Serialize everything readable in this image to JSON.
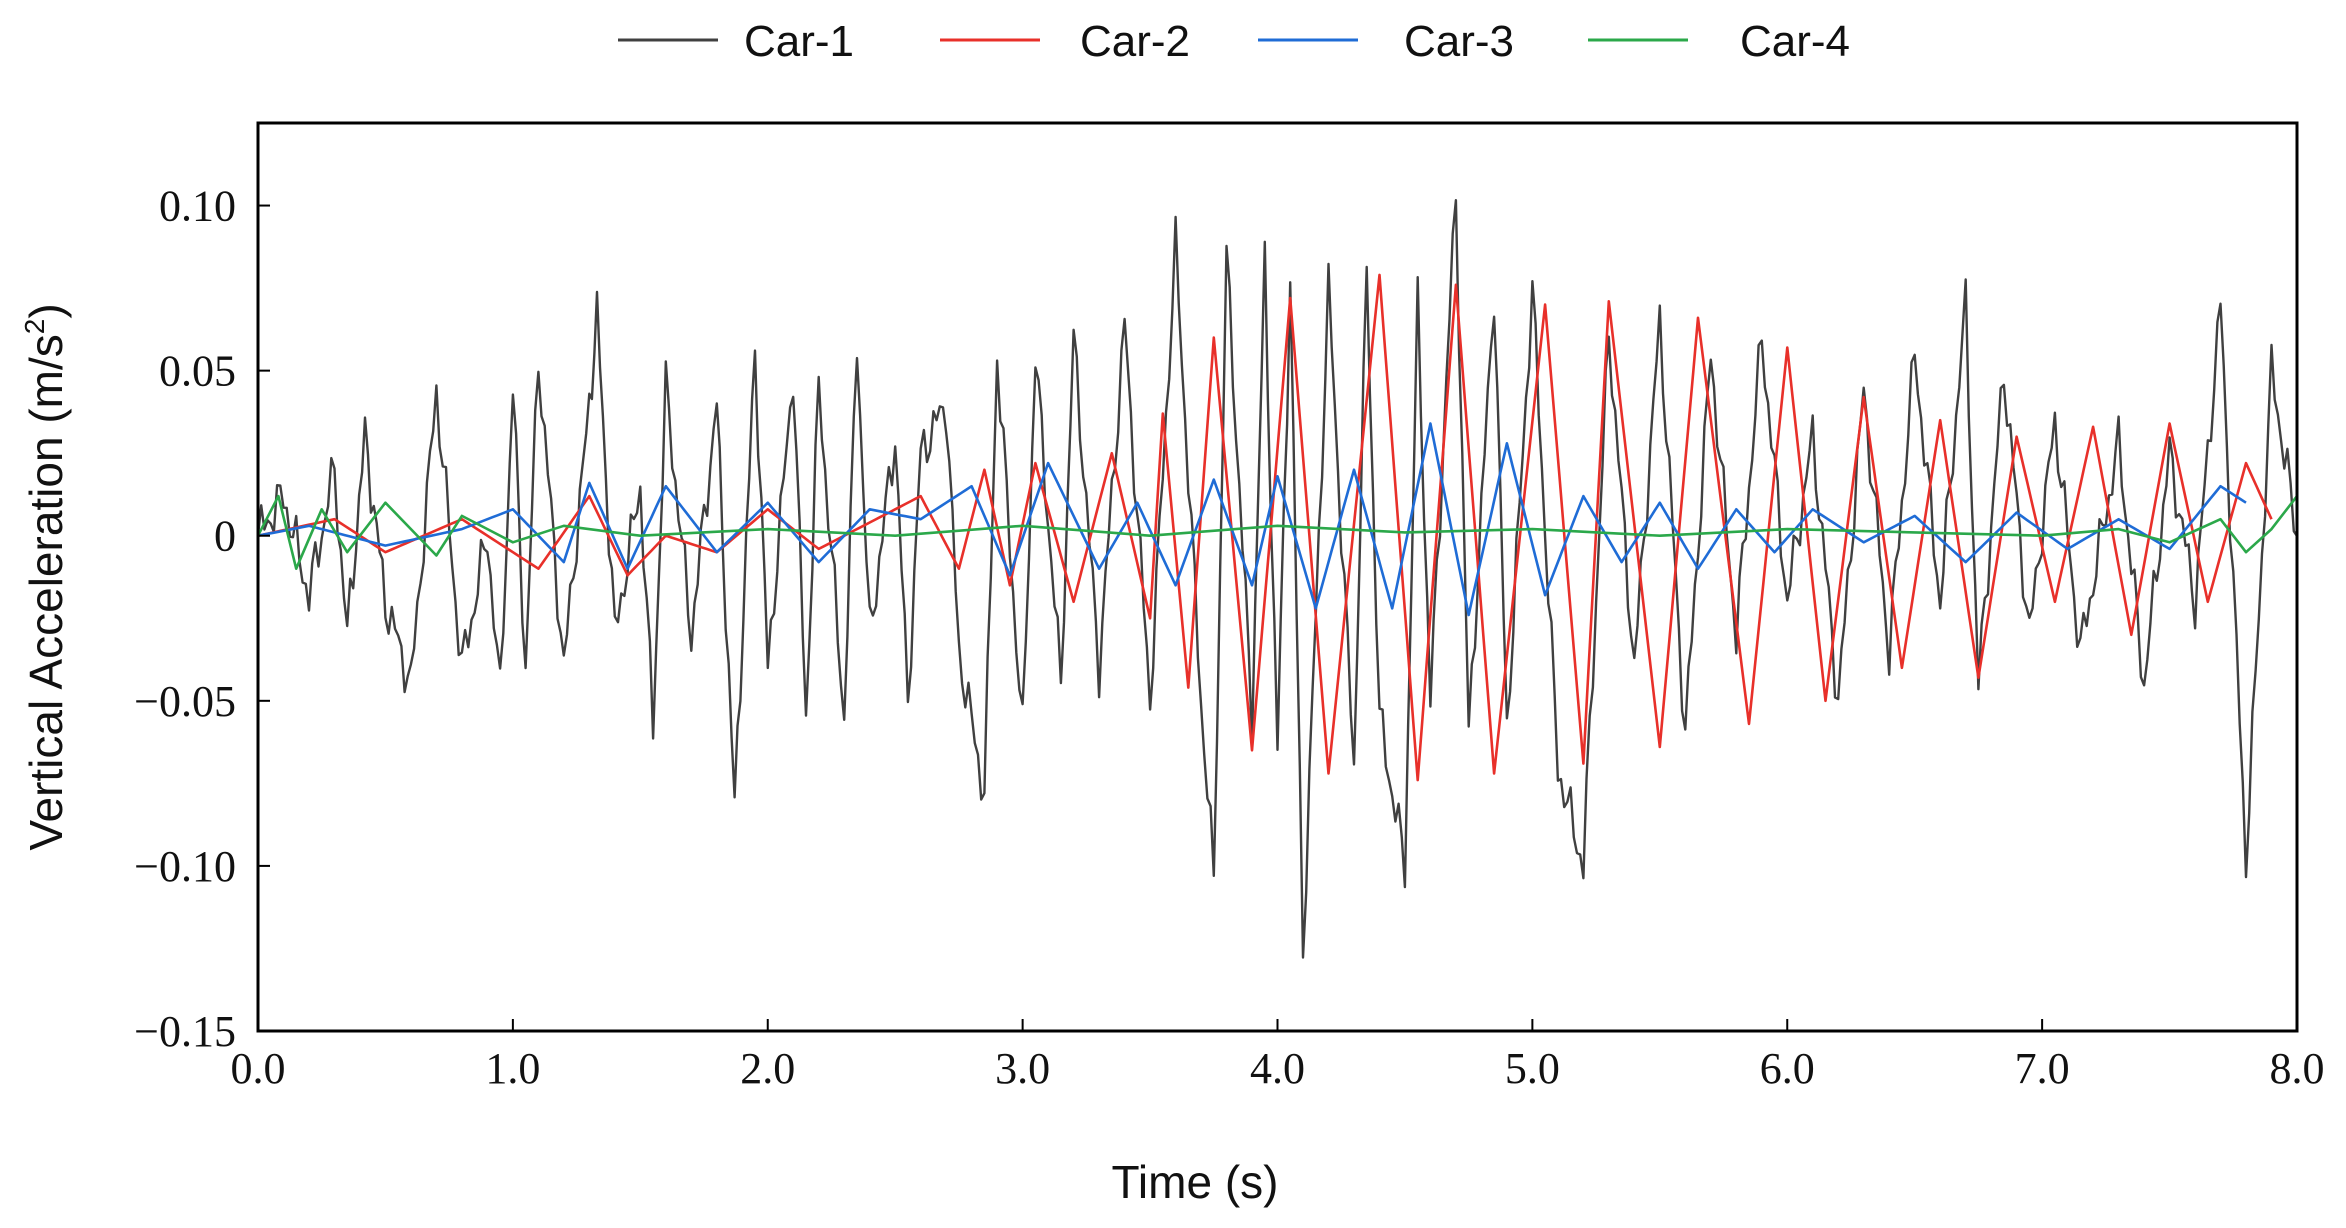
{
  "chart_data": {
    "type": "line",
    "title": "",
    "xlabel": "Time (s)",
    "ylabel_prefix": "Vertical Acceleration (m/s",
    "ylabel_exp": "2",
    "ylabel_suffix": ")",
    "xlim": [
      0,
      8
    ],
    "ylim": [
      -0.15,
      0.125
    ],
    "xticks": [
      0,
      1,
      2,
      3,
      4,
      5,
      6,
      7,
      8
    ],
    "xtick_labels": [
      "0.0",
      "1.0",
      "2.0",
      "3.0",
      "4.0",
      "5.0",
      "6.0",
      "7.0",
      "8.0"
    ],
    "yticks": [
      -0.15,
      -0.1,
      -0.05,
      0,
      0.05,
      0.1
    ],
    "ytick_labels": [
      "−0.15",
      "−0.10",
      "−0.05",
      "0",
      "0.05",
      "0.10"
    ],
    "legend_position": "top-center",
    "series": [
      {
        "name": "Car-1",
        "color": "#404040",
        "points": [
          [
            0,
            0
          ],
          [
            0.1,
            0.012
          ],
          [
            0.2,
            -0.018
          ],
          [
            0.3,
            0.02
          ],
          [
            0.35,
            -0.03
          ],
          [
            0.42,
            0.03
          ],
          [
            0.5,
            -0.02
          ],
          [
            0.6,
            -0.045
          ],
          [
            0.7,
            0.044
          ],
          [
            0.8,
            -0.04
          ],
          [
            0.9,
            0.0
          ],
          [
            0.95,
            -0.048
          ],
          [
            1.0,
            0.045
          ],
          [
            1.05,
            -0.04
          ],
          [
            1.1,
            0.054
          ],
          [
            1.2,
            -0.04
          ],
          [
            1.3,
            0.04
          ],
          [
            1.33,
            0.067
          ],
          [
            1.4,
            -0.03
          ],
          [
            1.5,
            0.015
          ],
          [
            1.55,
            -0.058
          ],
          [
            1.6,
            0.045
          ],
          [
            1.7,
            -0.03
          ],
          [
            1.8,
            0.04
          ],
          [
            1.87,
            -0.082
          ],
          [
            1.95,
            0.057
          ],
          [
            2.0,
            -0.04
          ],
          [
            2.1,
            0.05
          ],
          [
            2.15,
            -0.055
          ],
          [
            2.2,
            0.045
          ],
          [
            2.3,
            -0.055
          ],
          [
            2.35,
            0.06
          ],
          [
            2.4,
            -0.03
          ],
          [
            2.5,
            0.03
          ],
          [
            2.55,
            -0.05
          ],
          [
            2.6,
            0.025
          ],
          [
            2.7,
            0.04
          ],
          [
            2.75,
            -0.035
          ],
          [
            2.85,
            -0.078
          ],
          [
            2.9,
            0.055
          ],
          [
            3.0,
            -0.06
          ],
          [
            3.05,
            0.055
          ],
          [
            3.15,
            -0.045
          ],
          [
            3.2,
            0.06
          ],
          [
            3.3,
            -0.04
          ],
          [
            3.4,
            0.064
          ],
          [
            3.5,
            -0.05
          ],
          [
            3.6,
            0.088
          ],
          [
            3.7,
            -0.05
          ],
          [
            3.75,
            -0.104
          ],
          [
            3.8,
            0.085
          ],
          [
            3.9,
            -0.055
          ],
          [
            3.95,
            0.082
          ],
          [
            4.0,
            -0.065
          ],
          [
            4.05,
            0.078
          ],
          [
            4.1,
            -0.125
          ],
          [
            4.2,
            0.075
          ],
          [
            4.3,
            -0.07
          ],
          [
            4.35,
            0.08
          ],
          [
            4.4,
            -0.055
          ],
          [
            4.5,
            -0.1
          ],
          [
            4.55,
            0.07
          ],
          [
            4.6,
            -0.05
          ],
          [
            4.7,
            0.104
          ],
          [
            4.75,
            -0.06
          ],
          [
            4.85,
            0.075
          ],
          [
            4.9,
            -0.058
          ],
          [
            5.0,
            0.075
          ],
          [
            5.1,
            -0.07
          ],
          [
            5.2,
            -0.1
          ],
          [
            5.3,
            0.062
          ],
          [
            5.4,
            -0.04
          ],
          [
            5.5,
            0.065
          ],
          [
            5.6,
            -0.06
          ],
          [
            5.7,
            0.055
          ],
          [
            5.8,
            -0.03
          ],
          [
            5.9,
            0.06
          ],
          [
            6.0,
            -0.02
          ],
          [
            6.1,
            0.03
          ],
          [
            6.2,
            -0.05
          ],
          [
            6.3,
            0.044
          ],
          [
            6.4,
            -0.035
          ],
          [
            6.5,
            0.055
          ],
          [
            6.6,
            -0.02
          ],
          [
            6.7,
            0.07
          ],
          [
            6.75,
            -0.045
          ],
          [
            6.85,
            0.05
          ],
          [
            6.95,
            -0.03
          ],
          [
            7.05,
            0.035
          ],
          [
            7.15,
            -0.035
          ],
          [
            7.3,
            0.028
          ],
          [
            7.4,
            -0.045
          ],
          [
            7.5,
            0.025
          ],
          [
            7.6,
            -0.02
          ],
          [
            7.7,
            0.07
          ],
          [
            7.8,
            -0.098
          ],
          [
            7.9,
            0.05
          ],
          [
            8.0,
            0.0
          ]
        ]
      },
      {
        "name": "Car-2",
        "color": "#e8302a",
        "points": [
          [
            0,
            0
          ],
          [
            0.3,
            0.005
          ],
          [
            0.5,
            -0.005
          ],
          [
            0.8,
            0.005
          ],
          [
            1.1,
            -0.01
          ],
          [
            1.3,
            0.012
          ],
          [
            1.45,
            -0.012
          ],
          [
            1.6,
            0.0
          ],
          [
            1.8,
            -0.005
          ],
          [
            2.0,
            0.008
          ],
          [
            2.2,
            -0.004
          ],
          [
            2.4,
            0.004
          ],
          [
            2.6,
            0.012
          ],
          [
            2.75,
            -0.01
          ],
          [
            2.85,
            0.02
          ],
          [
            2.95,
            -0.015
          ],
          [
            3.05,
            0.022
          ],
          [
            3.2,
            -0.02
          ],
          [
            3.35,
            0.025
          ],
          [
            3.5,
            -0.025
          ],
          [
            3.55,
            0.037
          ],
          [
            3.65,
            -0.046
          ],
          [
            3.75,
            0.06
          ],
          [
            3.9,
            -0.065
          ],
          [
            4.05,
            0.072
          ],
          [
            4.2,
            -0.072
          ],
          [
            4.4,
            0.079
          ],
          [
            4.55,
            -0.074
          ],
          [
            4.7,
            0.076
          ],
          [
            4.85,
            -0.072
          ],
          [
            5.05,
            0.07
          ],
          [
            5.2,
            -0.069
          ],
          [
            5.3,
            0.071
          ],
          [
            5.5,
            -0.064
          ],
          [
            5.65,
            0.066
          ],
          [
            5.85,
            -0.057
          ],
          [
            6.0,
            0.057
          ],
          [
            6.15,
            -0.05
          ],
          [
            6.3,
            0.042
          ],
          [
            6.45,
            -0.04
          ],
          [
            6.6,
            0.035
          ],
          [
            6.75,
            -0.043
          ],
          [
            6.9,
            0.03
          ],
          [
            7.05,
            -0.02
          ],
          [
            7.2,
            0.033
          ],
          [
            7.35,
            -0.03
          ],
          [
            7.5,
            0.034
          ],
          [
            7.65,
            -0.02
          ],
          [
            7.8,
            0.022
          ],
          [
            7.9,
            0.005
          ]
        ]
      },
      {
        "name": "Car-3",
        "color": "#1f6cd6",
        "points": [
          [
            0,
            0
          ],
          [
            0.2,
            0.003
          ],
          [
            0.5,
            -0.003
          ],
          [
            0.8,
            0.002
          ],
          [
            1.0,
            0.008
          ],
          [
            1.2,
            -0.008
          ],
          [
            1.3,
            0.016
          ],
          [
            1.45,
            -0.01
          ],
          [
            1.6,
            0.015
          ],
          [
            1.8,
            -0.005
          ],
          [
            2.0,
            0.01
          ],
          [
            2.2,
            -0.008
          ],
          [
            2.4,
            0.008
          ],
          [
            2.6,
            0.005
          ],
          [
            2.8,
            0.015
          ],
          [
            2.95,
            -0.012
          ],
          [
            3.1,
            0.022
          ],
          [
            3.3,
            -0.01
          ],
          [
            3.45,
            0.01
          ],
          [
            3.6,
            -0.015
          ],
          [
            3.75,
            0.017
          ],
          [
            3.9,
            -0.015
          ],
          [
            4.0,
            0.018
          ],
          [
            4.15,
            -0.022
          ],
          [
            4.3,
            0.02
          ],
          [
            4.45,
            -0.022
          ],
          [
            4.6,
            0.034
          ],
          [
            4.75,
            -0.024
          ],
          [
            4.9,
            0.028
          ],
          [
            5.05,
            -0.018
          ],
          [
            5.2,
            0.012
          ],
          [
            5.35,
            -0.008
          ],
          [
            5.5,
            0.01
          ],
          [
            5.65,
            -0.01
          ],
          [
            5.8,
            0.008
          ],
          [
            5.95,
            -0.005
          ],
          [
            6.1,
            0.008
          ],
          [
            6.3,
            -0.002
          ],
          [
            6.5,
            0.006
          ],
          [
            6.7,
            -0.008
          ],
          [
            6.9,
            0.007
          ],
          [
            7.1,
            -0.004
          ],
          [
            7.3,
            0.005
          ],
          [
            7.5,
            -0.004
          ],
          [
            7.7,
            0.015
          ],
          [
            7.8,
            0.01
          ]
        ]
      },
      {
        "name": "Car-4",
        "color": "#2ba84a",
        "points": [
          [
            0,
            0
          ],
          [
            0.08,
            0.012
          ],
          [
            0.15,
            -0.01
          ],
          [
            0.25,
            0.008
          ],
          [
            0.35,
            -0.005
          ],
          [
            0.5,
            0.01
          ],
          [
            0.7,
            -0.006
          ],
          [
            0.8,
            0.006
          ],
          [
            1.0,
            -0.002
          ],
          [
            1.2,
            0.003
          ],
          [
            1.5,
            0.0
          ],
          [
            2.0,
            0.002
          ],
          [
            2.5,
            0.0
          ],
          [
            3.0,
            0.003
          ],
          [
            3.5,
            0.0
          ],
          [
            4.0,
            0.003
          ],
          [
            4.5,
            0.001
          ],
          [
            5.0,
            0.002
          ],
          [
            5.5,
            0.0
          ],
          [
            6.0,
            0.002
          ],
          [
            6.5,
            0.001
          ],
          [
            7.0,
            0.0
          ],
          [
            7.3,
            0.002
          ],
          [
            7.5,
            -0.002
          ],
          [
            7.7,
            0.005
          ],
          [
            7.8,
            -0.005
          ],
          [
            7.9,
            0.002
          ],
          [
            8.0,
            0.012
          ]
        ]
      }
    ]
  }
}
